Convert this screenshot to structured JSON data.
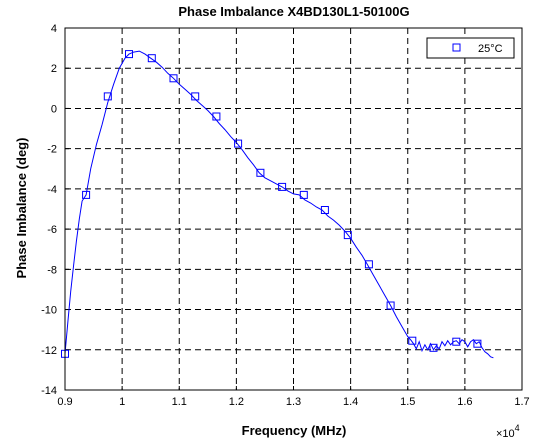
{
  "chart_data": {
    "type": "line",
    "title": "Phase Imbalance  X4BD130L1-50100G",
    "xlabel": "Frequency (MHz)",
    "ylabel": "Phase Imbalance (deg)",
    "x_multiplier_base": "×10",
    "x_multiplier_exp": "4",
    "xlim": [
      0.9,
      1.7
    ],
    "ylim": [
      -14,
      4
    ],
    "x_ticks": [
      0.9,
      1.0,
      1.1,
      1.2,
      1.3,
      1.4,
      1.5,
      1.6,
      1.7
    ],
    "x_tick_labels": [
      "0.9",
      "1",
      "1.1",
      "1.2",
      "1.3",
      "1.4",
      "1.5",
      "1.6",
      "1.7"
    ],
    "y_ticks": [
      4,
      2,
      0,
      -2,
      -4,
      -6,
      -8,
      -10,
      -12,
      -14
    ],
    "y_tick_labels": [
      "4",
      "2",
      "0",
      "-2",
      "-4",
      "-6",
      "-8",
      "-10",
      "-12",
      "-14"
    ],
    "grid": true,
    "grid_style": "dashed",
    "legend_position": "top-right",
    "series": [
      {
        "name": "25°C",
        "color": "#0000ff",
        "marker": "square",
        "line_points": [
          [
            0.9,
            -12.2
          ],
          [
            0.905,
            -10.6
          ],
          [
            0.91,
            -9.1
          ],
          [
            0.915,
            -7.8
          ],
          [
            0.92,
            -6.6
          ],
          [
            0.925,
            -5.5
          ],
          [
            0.93,
            -4.6
          ],
          [
            0.937,
            -4.3
          ],
          [
            0.945,
            -3.0
          ],
          [
            0.955,
            -1.8
          ],
          [
            0.965,
            -0.8
          ],
          [
            0.975,
            0.3
          ],
          [
            0.985,
            1.2
          ],
          [
            0.995,
            2.0
          ],
          [
            1.005,
            2.5
          ],
          [
            1.012,
            2.7
          ],
          [
            1.02,
            2.8
          ],
          [
            1.03,
            2.85
          ],
          [
            1.04,
            2.7
          ],
          [
            1.05,
            2.5
          ],
          [
            1.06,
            2.3
          ],
          [
            1.07,
            2.05
          ],
          [
            1.08,
            1.75
          ],
          [
            1.09,
            1.5
          ],
          [
            1.1,
            1.2
          ],
          [
            1.11,
            0.95
          ],
          [
            1.12,
            0.7
          ],
          [
            1.13,
            0.4
          ],
          [
            1.14,
            0.15
          ],
          [
            1.15,
            -0.1
          ],
          [
            1.16,
            -0.4
          ],
          [
            1.17,
            -0.75
          ],
          [
            1.18,
            -1.05
          ],
          [
            1.19,
            -1.4
          ],
          [
            1.2,
            -1.7
          ],
          [
            1.21,
            -2.05
          ],
          [
            1.22,
            -2.45
          ],
          [
            1.23,
            -2.8
          ],
          [
            1.24,
            -3.2
          ],
          [
            1.25,
            -3.45
          ],
          [
            1.26,
            -3.6
          ],
          [
            1.27,
            -3.75
          ],
          [
            1.28,
            -3.9
          ],
          [
            1.29,
            -4.1
          ],
          [
            1.3,
            -4.25
          ],
          [
            1.31,
            -4.3
          ],
          [
            1.32,
            -4.55
          ],
          [
            1.33,
            -4.7
          ],
          [
            1.34,
            -4.9
          ],
          [
            1.35,
            -5.05
          ],
          [
            1.36,
            -5.35
          ],
          [
            1.37,
            -5.55
          ],
          [
            1.38,
            -5.8
          ],
          [
            1.39,
            -6.1
          ],
          [
            1.4,
            -6.45
          ],
          [
            1.41,
            -6.9
          ],
          [
            1.42,
            -7.3
          ],
          [
            1.43,
            -7.8
          ],
          [
            1.44,
            -8.3
          ],
          [
            1.45,
            -8.8
          ],
          [
            1.46,
            -9.3
          ],
          [
            1.47,
            -9.8
          ],
          [
            1.48,
            -10.35
          ],
          [
            1.49,
            -10.85
          ],
          [
            1.5,
            -11.35
          ],
          [
            1.505,
            -11.5
          ],
          [
            1.51,
            -11.7
          ],
          [
            1.515,
            -11.95
          ],
          [
            1.52,
            -11.6
          ],
          [
            1.525,
            -12.05
          ],
          [
            1.53,
            -11.75
          ],
          [
            1.535,
            -12.0
          ],
          [
            1.54,
            -11.7
          ],
          [
            1.545,
            -12.0
          ],
          [
            1.55,
            -11.8
          ],
          [
            1.555,
            -11.95
          ],
          [
            1.56,
            -11.6
          ],
          [
            1.565,
            -11.8
          ],
          [
            1.57,
            -11.55
          ],
          [
            1.575,
            -11.75
          ],
          [
            1.58,
            -11.6
          ],
          [
            1.585,
            -11.55
          ],
          [
            1.59,
            -11.7
          ],
          [
            1.595,
            -11.5
          ],
          [
            1.6,
            -11.6
          ],
          [
            1.605,
            -11.85
          ],
          [
            1.61,
            -11.6
          ],
          [
            1.615,
            -11.5
          ],
          [
            1.62,
            -11.7
          ],
          [
            1.625,
            -11.6
          ],
          [
            1.63,
            -11.9
          ],
          [
            1.635,
            -12.1
          ],
          [
            1.64,
            -12.2
          ],
          [
            1.645,
            -12.35
          ],
          [
            1.65,
            -12.4
          ]
        ],
        "markers": [
          [
            0.9,
            -12.2
          ],
          [
            0.937,
            -4.3
          ],
          [
            0.975,
            0.6
          ],
          [
            1.012,
            2.7
          ],
          [
            1.052,
            2.5
          ],
          [
            1.09,
            1.5
          ],
          [
            1.128,
            0.6
          ],
          [
            1.165,
            -0.4
          ],
          [
            1.203,
            -1.75
          ],
          [
            1.242,
            -3.2
          ],
          [
            1.28,
            -3.9
          ],
          [
            1.318,
            -4.3
          ],
          [
            1.355,
            -5.05
          ],
          [
            1.395,
            -6.3
          ],
          [
            1.432,
            -7.75
          ],
          [
            1.47,
            -9.8
          ],
          [
            1.508,
            -11.55
          ],
          [
            1.545,
            -11.9
          ],
          [
            1.585,
            -11.6
          ],
          [
            1.622,
            -11.7
          ]
        ]
      }
    ]
  }
}
